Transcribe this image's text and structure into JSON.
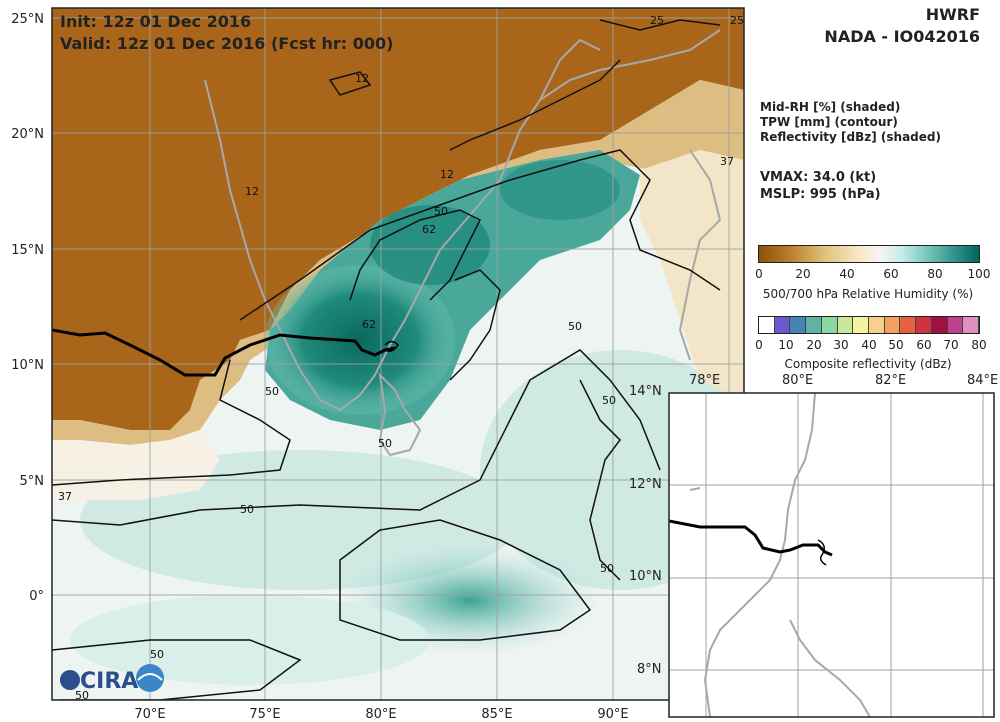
{
  "header": {
    "init": "Init:   12z 01 Dec 2016",
    "valid": "Valid: 12z 01 Dec 2016 (Fcst hr: 000)",
    "model": "HWRF",
    "storm": "NADA - IO042016"
  },
  "legend": {
    "line1": "Mid-RH [%] (shaded)",
    "line2": "TPW [mm] (contour)",
    "line3": "Reflectivity [dBz] (shaded)"
  },
  "stats": {
    "vmax": "VMAX:  34.0 (kt)",
    "mslp": "MSLP:  995 (hPa)"
  },
  "colorbar_rh": {
    "ticks": [
      "0",
      "20",
      "40",
      "60",
      "80",
      "100"
    ],
    "label": "500/700 hPa Relative Humidity (%)"
  },
  "colorbar_ref": {
    "ticks": [
      "0",
      "10",
      "20",
      "30",
      "40",
      "50",
      "60",
      "70",
      "80"
    ],
    "label": "Composite reflectivity (dBz)",
    "colors": [
      "#ffffff",
      "#6a5acd",
      "#4682b4",
      "#5fb3a3",
      "#88d8a0",
      "#c8e89a",
      "#f5f2a0",
      "#f7d090",
      "#f5a060",
      "#e86040",
      "#d03040",
      "#a01040",
      "#c04090",
      "#e090c0"
    ]
  },
  "main_map": {
    "lat_labels": [
      "25°N",
      "20°N",
      "15°N",
      "10°N",
      "5°N",
      "0°"
    ],
    "lon_labels": [
      "70°E",
      "75°E",
      "80°E",
      "85°E",
      "90°E"
    ],
    "contour_labels": [
      "25",
      "25",
      "12",
      "12",
      "12",
      "37",
      "50",
      "62",
      "62",
      "50",
      "50",
      "50",
      "50",
      "50",
      "37",
      "50",
      "50",
      "50"
    ]
  },
  "inset_map": {
    "lon_labels": [
      "78°E",
      "80°E",
      "82°E",
      "84°E"
    ],
    "lat_labels": [
      "14°N",
      "12°N",
      "10°N",
      "8°N"
    ]
  },
  "logo": {
    "text": "CIRA"
  },
  "colors": {
    "land_brown": "#a9661b",
    "teal": "#1f7f73",
    "track": "#000000",
    "coast": "#a8a8a8"
  }
}
